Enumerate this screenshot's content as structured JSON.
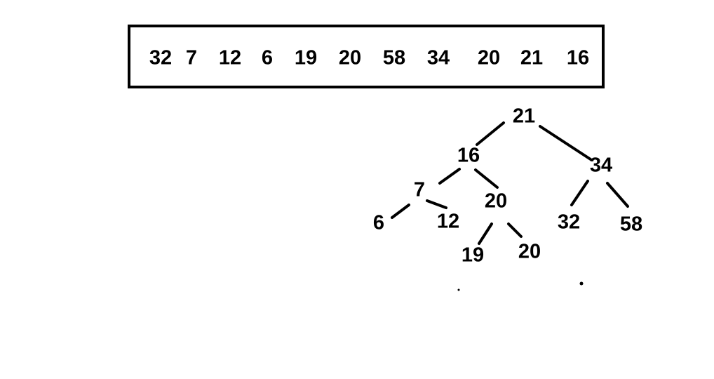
{
  "array": {
    "values": [
      "32",
      "7",
      "12",
      "6",
      "19",
      "20",
      "58",
      "34",
      "20",
      "21",
      "16"
    ]
  },
  "tree": {
    "nodes": {
      "root": "21",
      "n16": "16",
      "n34": "34",
      "n7": "7",
      "n20a": "20",
      "n32": "32",
      "n58": "58",
      "n6": "6",
      "n12": "12",
      "n19": "19",
      "n20b": "20"
    },
    "edges": [
      [
        "root",
        "n16"
      ],
      [
        "root",
        "n34"
      ],
      [
        "n16",
        "n7"
      ],
      [
        "n16",
        "n20a"
      ],
      [
        "n34",
        "n32"
      ],
      [
        "n34",
        "n58"
      ],
      [
        "n7",
        "n6"
      ],
      [
        "n7",
        "n12"
      ],
      [
        "n20a",
        "n19"
      ],
      [
        "n20a",
        "n20b"
      ]
    ]
  }
}
